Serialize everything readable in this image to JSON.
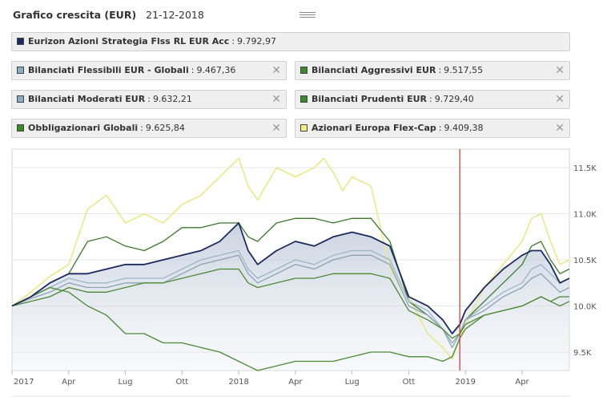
{
  "header": {
    "title": "Grafico crescita (EUR)",
    "date": "21-12-2018"
  },
  "legend": [
    {
      "name": "Eurizon Azioni Strategia Flss RL EUR Acc",
      "value": "9.792,97",
      "color": "#1a2a5e",
      "removable": false
    },
    {
      "name": "Bilanciati Flessibili EUR - Globali",
      "value": "9.467,36",
      "color": "#8aaec0",
      "removable": true
    },
    {
      "name": "Bilanciati Aggressivi EUR",
      "value": "9.517,55",
      "color": "#3a8a2a",
      "removable": true
    },
    {
      "name": "Bilanciati Moderati EUR",
      "value": "9.632,21",
      "color": "#8aaec0",
      "removable": true
    },
    {
      "name": "Bilanciati Prudenti EUR",
      "value": "9.729,40",
      "color": "#3a8a2a",
      "removable": true
    },
    {
      "name": "Obbligazionari Globali",
      "value": "9.625,84",
      "color": "#3a8a2a",
      "removable": true
    },
    {
      "name": "Azionari Europa Flex-Cap",
      "value": "9.409,38",
      "color": "#f0ee88",
      "removable": true
    }
  ],
  "chart_data": {
    "type": "line",
    "title": "Grafico crescita (EUR)",
    "x_ticks": [
      "2017",
      "Apr",
      "Lug",
      "Ott",
      "2018",
      "Apr",
      "Lug",
      "Ott",
      "2019",
      "Apr"
    ],
    "y_ticks": [
      "11.5K",
      "11.0K",
      "10.5K",
      "10.0K",
      "9.5K"
    ],
    "ylim": [
      9300,
      11700
    ],
    "xlim": [
      0,
      29.5
    ],
    "marker": {
      "x": 23.7,
      "color": "#cc3333"
    },
    "series": [
      {
        "name": "Azionari Europa Flex-Cap",
        "color": "#e9e98a",
        "width": 1.6,
        "x": [
          0,
          1,
          2,
          3,
          4,
          5,
          6,
          7,
          8,
          9,
          10,
          11,
          11.5,
          12,
          12.5,
          13,
          14,
          15,
          16,
          16.5,
          17,
          17.5,
          18,
          19,
          20,
          21,
          22,
          22.8,
          23.3,
          23.7,
          24,
          25,
          26,
          27,
          27.5,
          28,
          28.5,
          29,
          29.5
        ],
        "y": [
          10000,
          10150,
          10320,
          10450,
          11050,
          11200,
          10900,
          11000,
          10900,
          11100,
          11200,
          11400,
          11500,
          11600,
          11300,
          11150,
          11500,
          11400,
          11500,
          11600,
          11450,
          11250,
          11400,
          11300,
          10400,
          10100,
          9700,
          9550,
          9420,
          9650,
          9800,
          10200,
          10450,
          10700,
          10950,
          11000,
          10700,
          10450,
          10500
        ]
      },
      {
        "name": "Bilanciati Aggressivi EUR",
        "color": "#3a7a2a",
        "width": 1.3,
        "x": [
          0,
          1,
          2,
          3,
          4,
          5,
          6,
          7,
          8,
          9,
          10,
          11,
          12,
          12.5,
          13,
          14,
          15,
          16,
          17,
          18,
          19,
          20,
          21,
          22,
          22.8,
          23.3,
          23.7,
          24,
          25,
          26,
          27,
          27.5,
          28,
          28.5,
          29,
          29.5
        ],
        "y": [
          10000,
          10100,
          10250,
          10350,
          10700,
          10750,
          10650,
          10600,
          10700,
          10850,
          10850,
          10900,
          10900,
          10750,
          10700,
          10900,
          10950,
          10950,
          10900,
          10950,
          10950,
          10700,
          10050,
          9900,
          9750,
          9550,
          9700,
          9850,
          10050,
          10250,
          10450,
          10650,
          10700,
          10500,
          10350,
          10400
        ]
      },
      {
        "name": "Bilanciati Flessibili EUR - Globali",
        "color": "#9ab6c6",
        "width": 1.3,
        "x": [
          0,
          1,
          2,
          3,
          4,
          5,
          6,
          7,
          8,
          9,
          10,
          11,
          12,
          12.5,
          13,
          14,
          15,
          16,
          17,
          18,
          19,
          20,
          21,
          22,
          22.8,
          23.3,
          23.7,
          24,
          25,
          26,
          27,
          27.5,
          28,
          28.5,
          29,
          29.5
        ],
        "y": [
          10000,
          10100,
          10200,
          10300,
          10250,
          10250,
          10300,
          10300,
          10300,
          10400,
          10500,
          10550,
          10600,
          10400,
          10300,
          10400,
          10500,
          10450,
          10550,
          10600,
          10600,
          10500,
          10050,
          9950,
          9750,
          9550,
          9700,
          9850,
          10000,
          10150,
          10250,
          10400,
          10450,
          10350,
          10250,
          10300
        ]
      },
      {
        "name": "Bilanciati Moderati EUR",
        "color": "#8aa2b4",
        "width": 1.3,
        "x": [
          0,
          1,
          2,
          3,
          4,
          5,
          6,
          7,
          8,
          9,
          10,
          11,
          12,
          12.5,
          13,
          14,
          15,
          16,
          17,
          18,
          19,
          20,
          21,
          22,
          22.8,
          23.3,
          23.7,
          24,
          25,
          26,
          27,
          27.5,
          28,
          28.5,
          29,
          29.5
        ],
        "y": [
          10000,
          10080,
          10150,
          10250,
          10200,
          10200,
          10250,
          10250,
          10250,
          10350,
          10450,
          10500,
          10550,
          10350,
          10250,
          10350,
          10450,
          10400,
          10500,
          10550,
          10550,
          10450,
          10000,
          9900,
          9750,
          9600,
          9700,
          9850,
          9950,
          10100,
          10200,
          10300,
          10350,
          10250,
          10150,
          10200
        ]
      },
      {
        "name": "Bilanciati Prudenti EUR",
        "color": "#4a8a32",
        "width": 1.3,
        "x": [
          0,
          1,
          2,
          3,
          4,
          5,
          6,
          7,
          8,
          9,
          10,
          11,
          12,
          12.5,
          13,
          14,
          15,
          16,
          17,
          18,
          19,
          20,
          21,
          22,
          22.8,
          23.3,
          23.7,
          24,
          25,
          26,
          27,
          27.5,
          28,
          28.5,
          29,
          29.5
        ],
        "y": [
          10000,
          10050,
          10100,
          10200,
          10150,
          10150,
          10200,
          10250,
          10250,
          10300,
          10350,
          10400,
          10400,
          10250,
          10200,
          10250,
          10300,
          10300,
          10350,
          10350,
          10350,
          10300,
          9950,
          9850,
          9750,
          9650,
          9700,
          9800,
          9900,
          9950,
          10000,
          10050,
          10100,
          10050,
          10000,
          10050
        ]
      },
      {
        "name": "Obbligazionari Globali",
        "color": "#4a8a32",
        "width": 1.3,
        "x": [
          0,
          1,
          2,
          3,
          4,
          5,
          6,
          7,
          8,
          9,
          10,
          11,
          12,
          12.5,
          13,
          14,
          15,
          16,
          17,
          18,
          19,
          20,
          21,
          22,
          22.8,
          23.3,
          23.7,
          24,
          25,
          26,
          27,
          27.5,
          28,
          28.5,
          29,
          29.5
        ],
        "y": [
          10000,
          10100,
          10200,
          10150,
          10000,
          9900,
          9700,
          9700,
          9600,
          9600,
          9550,
          9500,
          9400,
          9350,
          9300,
          9350,
          9400,
          9400,
          9400,
          9450,
          9500,
          9500,
          9450,
          9450,
          9400,
          9450,
          9650,
          9750,
          9900,
          9950,
          10000,
          10050,
          10100,
          10050,
          10100,
          10100
        ]
      },
      {
        "name": "Eurizon Azioni Strategia Flss RL EUR Acc",
        "color": "#1a2a5e",
        "width": 1.8,
        "area": true,
        "x": [
          0,
          1,
          2,
          3,
          4,
          5,
          6,
          7,
          8,
          9,
          10,
          11,
          12,
          12.5,
          13,
          14,
          15,
          16,
          17,
          18,
          19,
          20,
          21,
          22,
          22.8,
          23.3,
          23.7,
          24,
          25,
          26,
          27,
          27.5,
          28,
          28.5,
          29,
          29.5
        ],
        "y": [
          10000,
          10100,
          10250,
          10350,
          10350,
          10400,
          10450,
          10450,
          10500,
          10550,
          10600,
          10700,
          10900,
          10600,
          10450,
          10600,
          10700,
          10650,
          10750,
          10800,
          10750,
          10650,
          10100,
          10000,
          9850,
          9700,
          9800,
          9950,
          10200,
          10400,
          10550,
          10600,
          10600,
          10450,
          10250,
          10300
        ]
      }
    ]
  }
}
